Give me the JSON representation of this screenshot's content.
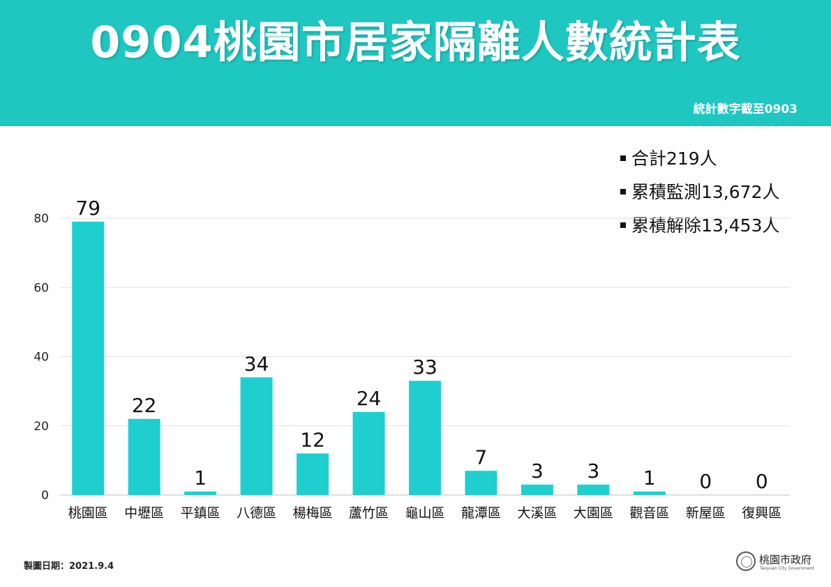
{
  "header": {
    "title": "0904桃園市居家隔離人數統計表",
    "subtitle": "統計數字截至0903",
    "bg_color": "#1fc7c1"
  },
  "summary": [
    {
      "label": "合計219人"
    },
    {
      "label": "累積監測13,672人"
    },
    {
      "label": "累積解除13,453人"
    }
  ],
  "chart_data": {
    "type": "bar",
    "title": "",
    "xlabel": "",
    "ylabel": "",
    "categories": [
      "桃園區",
      "中壢區",
      "平鎮區",
      "八德區",
      "楊梅區",
      "蘆竹區",
      "龜山區",
      "龍潭區",
      "大溪區",
      "大園區",
      "觀音區",
      "新屋區",
      "復興區"
    ],
    "values": [
      79,
      22,
      1,
      34,
      12,
      24,
      33,
      7,
      3,
      3,
      1,
      0,
      0
    ],
    "ylim": [
      0,
      80
    ],
    "yticks": [
      0,
      20,
      40,
      60,
      80
    ],
    "grid": true,
    "bar_color": "#1fcfcf",
    "data_labels": true
  },
  "footer": {
    "date_text": "製圖日期：2021.9.4",
    "logo_name": "桃園市政府",
    "logo_sub": "Taoyuan City Government"
  }
}
